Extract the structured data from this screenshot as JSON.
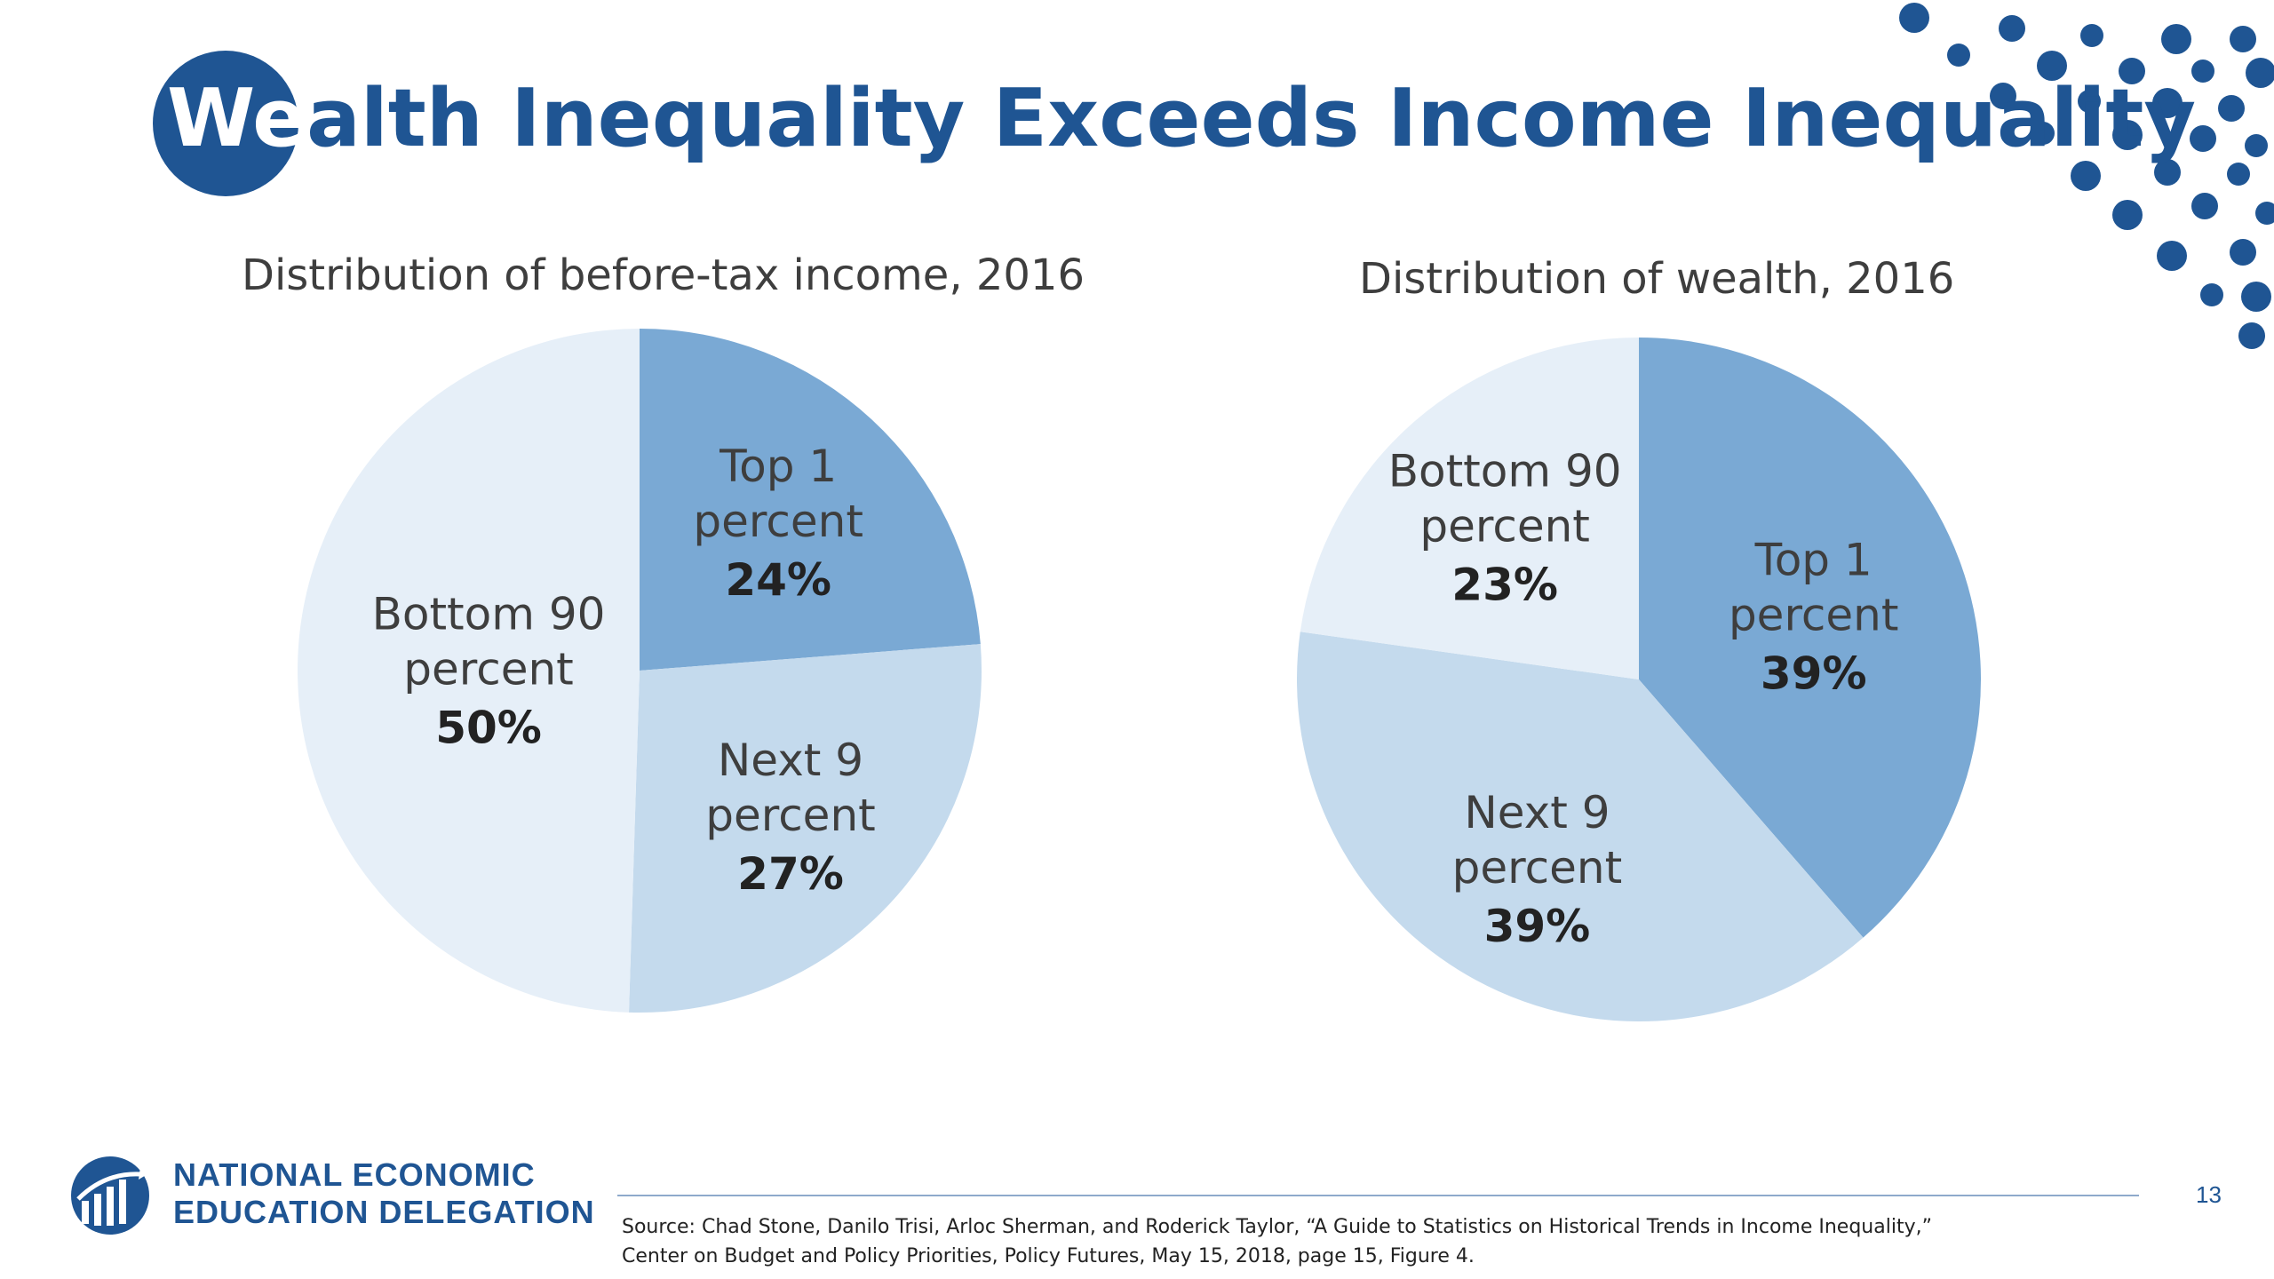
{
  "slide": {
    "title_prefix": "We",
    "title_rest": "alth Inequality Exceeds Income Inequality",
    "page_number": "13",
    "source_line1": "Source: Chad Stone, Danilo Trisi, Arloc Sherman, and Roderick Taylor, “A Guide to Statistics on Historical Trends in Income Inequality,”",
    "source_line2": "Center on Budget and Policy Priorities, Policy Futures, May 15, 2018, page 15, Figure 4.",
    "org_line1": "NATIONAL ECONOMIC",
    "org_line2": "EDUCATION DELEGATION",
    "brand_color": "#1f5593"
  },
  "chart_data": [
    {
      "type": "pie",
      "title": "Distribution of before-tax income, 2016",
      "slices": [
        {
          "label_line1": "Top 1",
          "label_line2": "percent",
          "value": 24,
          "value_label": "24%",
          "color": "#7aa9d4"
        },
        {
          "label_line1": "Next 9",
          "label_line2": "percent",
          "value": 27,
          "value_label": "27%",
          "color": "#c4daed"
        },
        {
          "label_line1": "Bottom 90",
          "label_line2": "percent",
          "value": 50,
          "value_label": "50%",
          "color": "#e6eff8"
        }
      ]
    },
    {
      "type": "pie",
      "title": "Distribution of wealth, 2016",
      "slices": [
        {
          "label_line1": "Top 1",
          "label_line2": "percent",
          "value": 39,
          "value_label": "39%",
          "color": "#7aa9d4"
        },
        {
          "label_line1": "Next 9",
          "label_line2": "percent",
          "value": 39,
          "value_label": "39%",
          "color": "#c4daed"
        },
        {
          "label_line1": "Bottom 90",
          "label_line2": "percent",
          "value": 23,
          "value_label": "23%",
          "color": "#e6eff8"
        }
      ]
    }
  ]
}
